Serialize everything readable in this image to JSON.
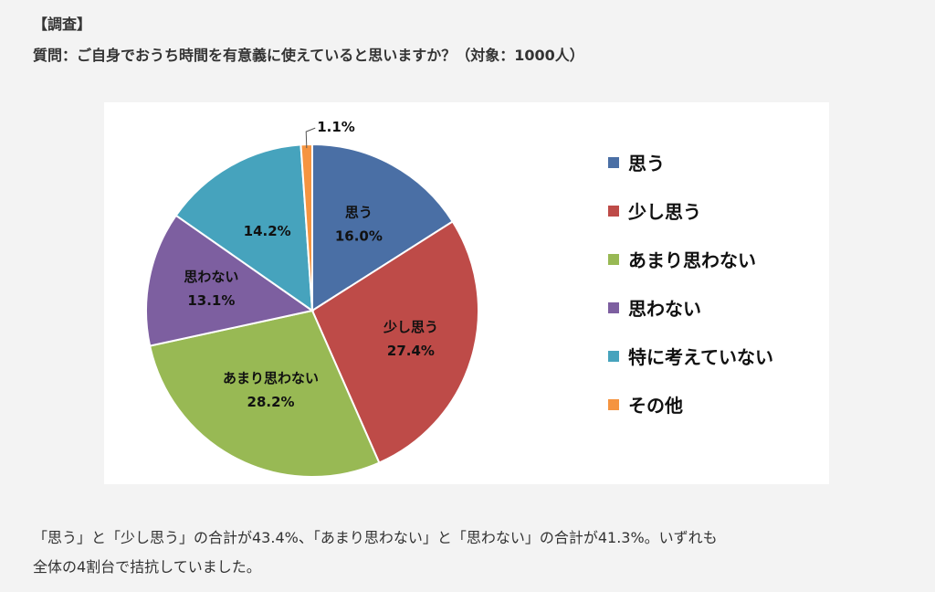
{
  "heading": "【調査】",
  "question": "質問：ご自身でおうち時間を有意義に使えていると思いますか？（対象：1000人）",
  "chart_data": {
    "type": "pie",
    "categories": [
      "思う",
      "少し思う",
      "あまり思わない",
      "思わない",
      "特に考えていない",
      "その他"
    ],
    "values": [
      16.0,
      27.4,
      28.2,
      13.1,
      14.2,
      1.1
    ],
    "value_labels": [
      "16.0%",
      "27.4%",
      "28.2%",
      "13.1%",
      "14.2%",
      "1.1%"
    ],
    "slice_labels": [
      "思う",
      "少し思う",
      "あまり思わない",
      "思わない",
      "",
      ""
    ],
    "colors": [
      "#4a6fa5",
      "#be4b48",
      "#98b954",
      "#7d5fa0",
      "#46a3bd",
      "#f59440"
    ],
    "legend_position": "right",
    "unit": "%"
  },
  "body_text": {
    "line1": "「思う」と「少し思う」の合計が43.4%、「あまり思わない」と「思わない」の合計が41.3%。いずれも",
    "line2": "全体の4割台で拮抗していました。"
  }
}
